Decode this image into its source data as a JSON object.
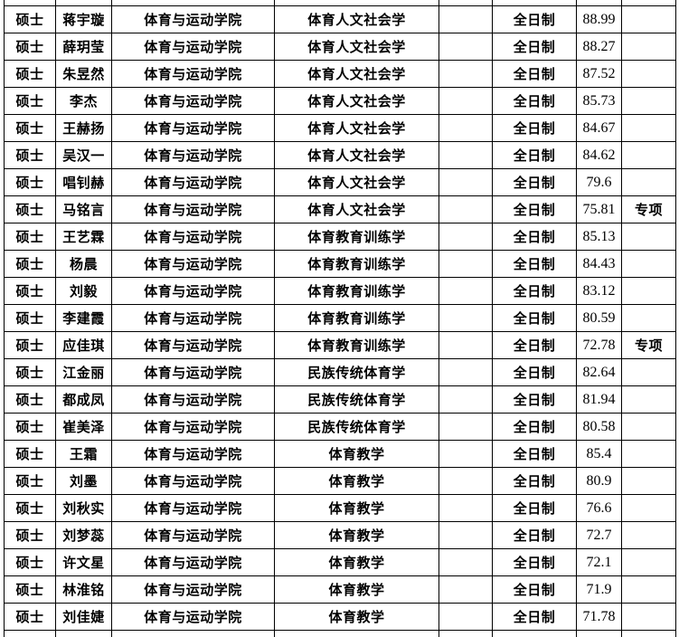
{
  "colors": {
    "background": "#ffffff",
    "border": "#000000",
    "text": "#000000"
  },
  "table": {
    "column_keys": [
      "degree",
      "name",
      "college",
      "major",
      "blank",
      "study-mode",
      "score",
      "remark"
    ],
    "rows": [
      [
        "硕士",
        "蒋宇璇",
        "体育与运动学院",
        "体育人文社会学",
        "",
        "全日制",
        "88.99",
        ""
      ],
      [
        "硕士",
        "薛玥莹",
        "体育与运动学院",
        "体育人文社会学",
        "",
        "全日制",
        "88.27",
        ""
      ],
      [
        "硕士",
        "朱昱然",
        "体育与运动学院",
        "体育人文社会学",
        "",
        "全日制",
        "87.52",
        ""
      ],
      [
        "硕士",
        "李杰",
        "体育与运动学院",
        "体育人文社会学",
        "",
        "全日制",
        "85.73",
        ""
      ],
      [
        "硕士",
        "王赫扬",
        "体育与运动学院",
        "体育人文社会学",
        "",
        "全日制",
        "84.67",
        ""
      ],
      [
        "硕士",
        "吴汉一",
        "体育与运动学院",
        "体育人文社会学",
        "",
        "全日制",
        "84.62",
        ""
      ],
      [
        "硕士",
        "唱钊赫",
        "体育与运动学院",
        "体育人文社会学",
        "",
        "全日制",
        "79.6",
        ""
      ],
      [
        "硕士",
        "马铭言",
        "体育与运动学院",
        "体育人文社会学",
        "",
        "全日制",
        "75.81",
        "专项"
      ],
      [
        "硕士",
        "王艺霖",
        "体育与运动学院",
        "体育教育训练学",
        "",
        "全日制",
        "85.13",
        ""
      ],
      [
        "硕士",
        "杨晨",
        "体育与运动学院",
        "体育教育训练学",
        "",
        "全日制",
        "84.43",
        ""
      ],
      [
        "硕士",
        "刘毅",
        "体育与运动学院",
        "体育教育训练学",
        "",
        "全日制",
        "83.12",
        ""
      ],
      [
        "硕士",
        "李建霞",
        "体育与运动学院",
        "体育教育训练学",
        "",
        "全日制",
        "80.59",
        ""
      ],
      [
        "硕士",
        "应佳琪",
        "体育与运动学院",
        "体育教育训练学",
        "",
        "全日制",
        "72.78",
        "专项"
      ],
      [
        "硕士",
        "江金丽",
        "体育与运动学院",
        "民族传统体育学",
        "",
        "全日制",
        "82.64",
        ""
      ],
      [
        "硕士",
        "都成凤",
        "体育与运动学院",
        "民族传统体育学",
        "",
        "全日制",
        "81.94",
        ""
      ],
      [
        "硕士",
        "崔美泽",
        "体育与运动学院",
        "民族传统体育学",
        "",
        "全日制",
        "80.58",
        ""
      ],
      [
        "硕士",
        "王霜",
        "体育与运动学院",
        "体育教学",
        "",
        "全日制",
        "85.4",
        ""
      ],
      [
        "硕士",
        "刘墨",
        "体育与运动学院",
        "体育教学",
        "",
        "全日制",
        "80.9",
        ""
      ],
      [
        "硕士",
        "刘秋实",
        "体育与运动学院",
        "体育教学",
        "",
        "全日制",
        "76.6",
        ""
      ],
      [
        "硕士",
        "刘梦蕊",
        "体育与运动学院",
        "体育教学",
        "",
        "全日制",
        "72.7",
        ""
      ],
      [
        "硕士",
        "许文星",
        "体育与运动学院",
        "体育教学",
        "",
        "全日制",
        "72.1",
        ""
      ],
      [
        "硕士",
        "林淮铭",
        "体育与运动学院",
        "体育教学",
        "",
        "全日制",
        "71.9",
        ""
      ],
      [
        "硕士",
        "刘佳婕",
        "体育与运动学院",
        "体育教学",
        "",
        "全日制",
        "71.78",
        ""
      ]
    ]
  }
}
